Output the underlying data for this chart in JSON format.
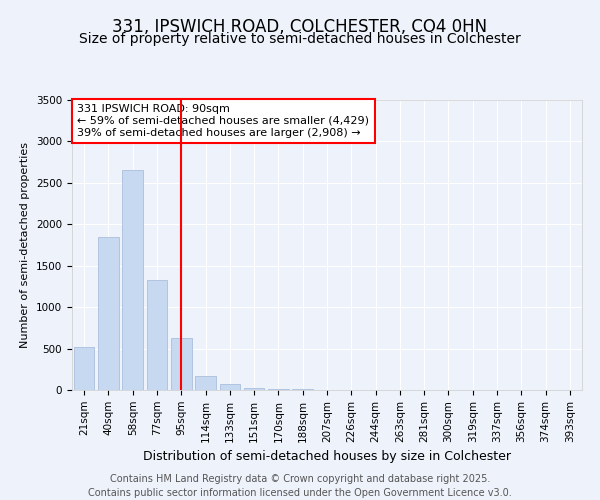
{
  "title": "331, IPSWICH ROAD, COLCHESTER, CO4 0HN",
  "subtitle": "Size of property relative to semi-detached houses in Colchester",
  "xlabel": "Distribution of semi-detached houses by size in Colchester",
  "ylabel": "Number of semi-detached properties",
  "bar_labels": [
    "21sqm",
    "40sqm",
    "58sqm",
    "77sqm",
    "95sqm",
    "114sqm",
    "133sqm",
    "151sqm",
    "170sqm",
    "188sqm",
    "207sqm",
    "226sqm",
    "244sqm",
    "263sqm",
    "281sqm",
    "300sqm",
    "319sqm",
    "337sqm",
    "356sqm",
    "374sqm",
    "393sqm"
  ],
  "bar_values": [
    520,
    1850,
    2650,
    1330,
    630,
    170,
    70,
    30,
    15,
    8,
    5,
    3,
    2,
    1,
    1,
    0,
    0,
    0,
    0,
    0,
    0
  ],
  "bar_color": "#c6d9f0",
  "bar_edgecolor": "#a0b8d8",
  "vline_color": "red",
  "vline_x": 4.0,
  "annotation_text": "331 IPSWICH ROAD: 90sqm\n← 59% of semi-detached houses are smaller (4,429)\n39% of semi-detached houses are larger (2,908) →",
  "annotation_box_color": "white",
  "annotation_border_color": "red",
  "ylim": [
    0,
    3500
  ],
  "yticks": [
    0,
    500,
    1000,
    1500,
    2000,
    2500,
    3000,
    3500
  ],
  "background_color": "#eef2fb",
  "plot_background": "#eef2fb",
  "grid_color": "white",
  "footnote": "Contains HM Land Registry data © Crown copyright and database right 2025.\nContains public sector information licensed under the Open Government Licence v3.0.",
  "title_fontsize": 12,
  "subtitle_fontsize": 10,
  "annotation_fontsize": 8,
  "footnote_fontsize": 7,
  "ylabel_fontsize": 8,
  "xlabel_fontsize": 9,
  "tick_fontsize": 7.5
}
